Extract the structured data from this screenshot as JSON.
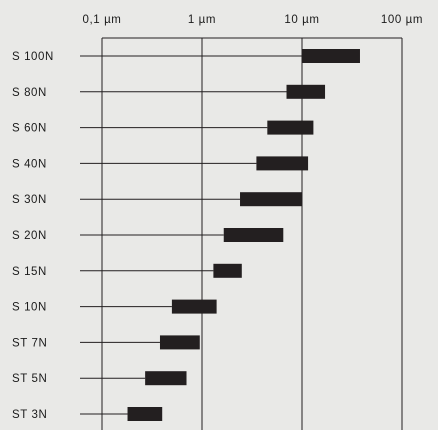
{
  "chart_data": {
    "type": "bar",
    "subtype": "range",
    "x_scale": "log",
    "x_ticks": [
      {
        "value": 0.1,
        "label": "0,1 µm"
      },
      {
        "value": 1,
        "label": "1 µm"
      },
      {
        "value": 10,
        "label": "10 µm"
      },
      {
        "value": 100,
        "label": "100 µm"
      }
    ],
    "xlim": [
      0.1,
      100
    ],
    "grid": true,
    "bar_color": "#231f20",
    "line_color": "#231f20",
    "background_color": "#e9e9e7",
    "series": [
      {
        "label": "S 100N",
        "min": 10,
        "max": 38
      },
      {
        "label": "S 80N",
        "min": 7,
        "max": 17
      },
      {
        "label": "S 60N",
        "min": 4.5,
        "max": 13
      },
      {
        "label": "S 40N",
        "min": 3.5,
        "max": 11.5
      },
      {
        "label": "S 30N",
        "min": 2.4,
        "max": 10
      },
      {
        "label": "S 20N",
        "min": 1.65,
        "max": 6.5
      },
      {
        "label": "S 15N",
        "min": 1.3,
        "max": 2.5
      },
      {
        "label": "S 10N",
        "min": 0.5,
        "max": 1.4
      },
      {
        "label": "ST 7N",
        "min": 0.38,
        "max": 0.95
      },
      {
        "label": "ST 5N",
        "min": 0.27,
        "max": 0.7
      },
      {
        "label": "ST 3N",
        "min": 0.18,
        "max": 0.4
      }
    ]
  }
}
